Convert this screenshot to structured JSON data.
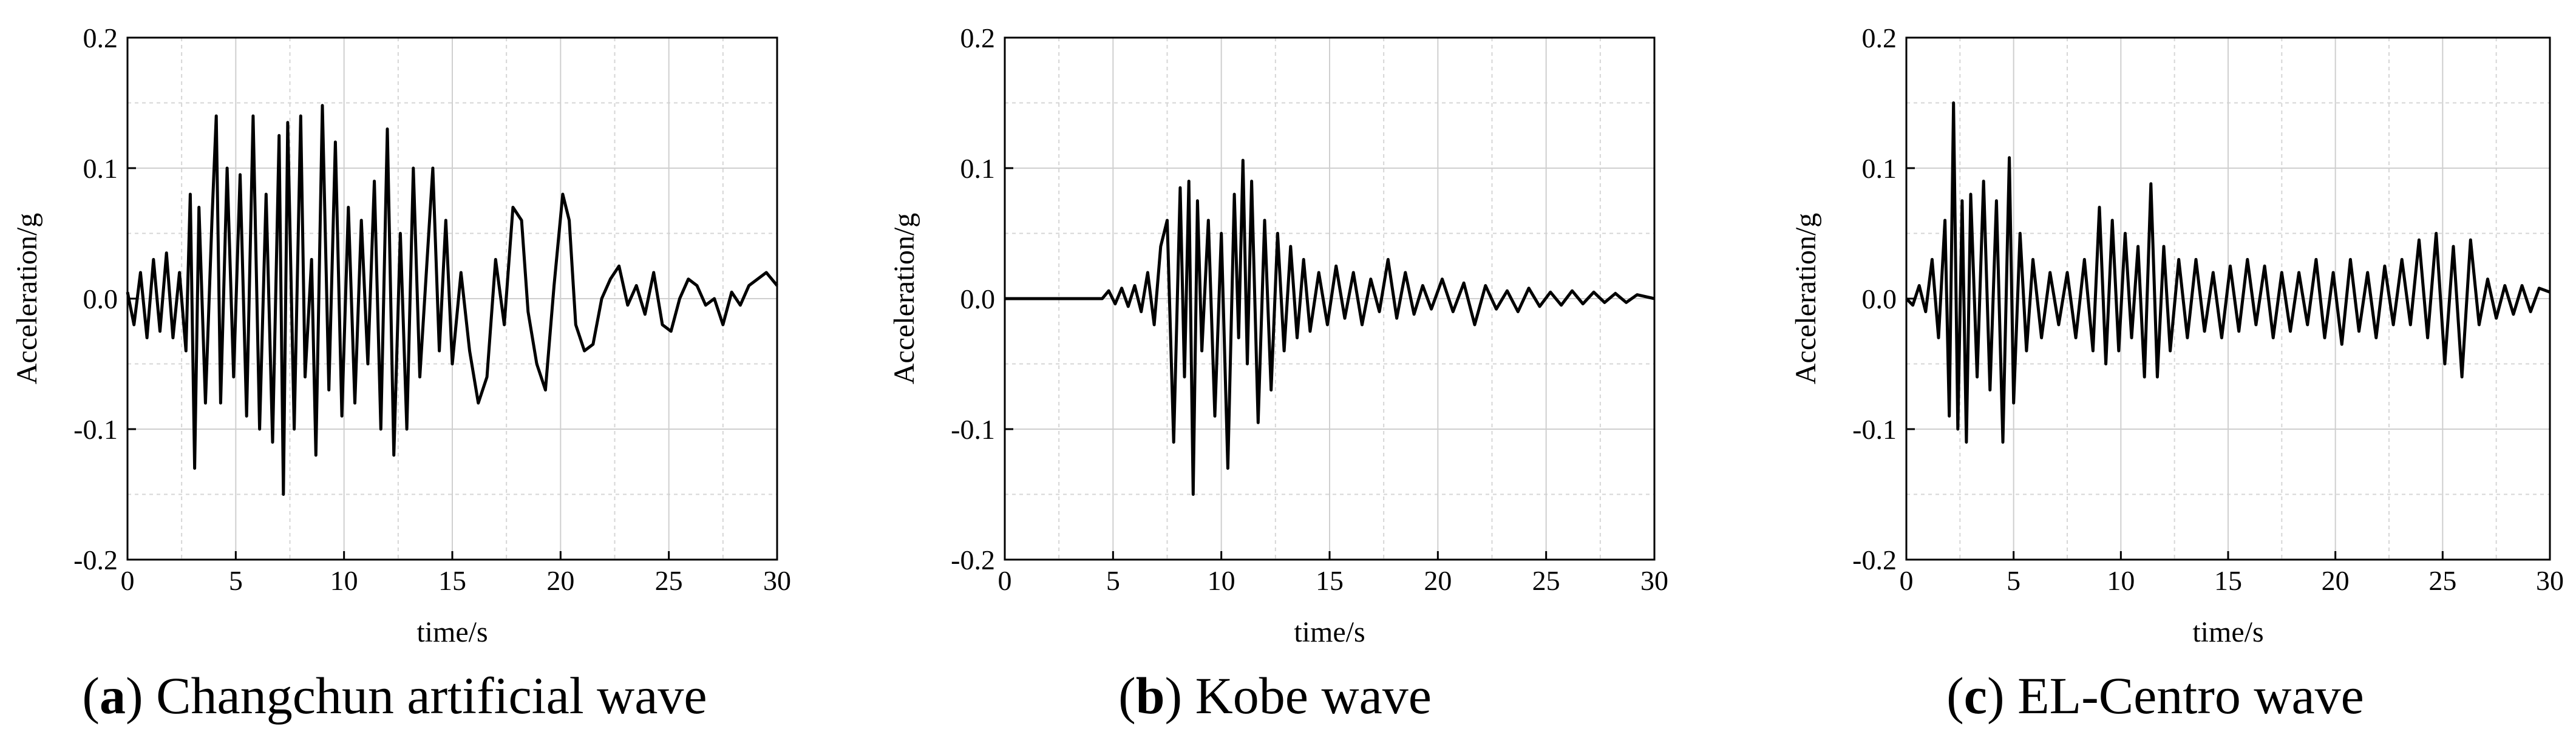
{
  "chart_data": [
    {
      "type": "line",
      "panel_letter": "a",
      "caption": "Changchun artificial wave",
      "xlabel": "time/s",
      "ylabel": "Acceleration/g",
      "xlim": [
        0,
        30
      ],
      "ylim": [
        -0.2,
        0.2
      ],
      "xticks": [
        "0",
        "5",
        "10",
        "15",
        "20",
        "25",
        "30"
      ],
      "yticks": [
        "-0.2",
        "-0.1",
        "0.0",
        "0.1",
        "0.2"
      ],
      "grid": true,
      "color": "#000000",
      "series": [
        {
          "x": [
            0,
            0.3,
            0.6,
            0.9,
            1.2,
            1.5,
            1.8,
            2.1,
            2.4,
            2.7,
            2.9,
            3.1,
            3.3,
            3.6,
            3.9,
            4.1,
            4.3,
            4.6,
            4.9,
            5.2,
            5.5,
            5.8,
            6.1,
            6.4,
            6.7,
            7.0,
            7.2,
            7.4,
            7.7,
            8.0,
            8.2,
            8.5,
            8.7,
            9.0,
            9.3,
            9.6,
            9.9,
            10.2,
            10.5,
            10.8,
            11.1,
            11.4,
            11.7,
            12.0,
            12.3,
            12.6,
            12.9,
            13.2,
            13.5,
            13.8,
            14.1,
            14.4,
            14.7,
            15.0,
            15.4,
            15.8,
            16.2,
            16.6,
            17.0,
            17.4,
            17.8,
            18.2,
            18.5,
            18.9,
            19.3,
            19.7,
            20.1,
            20.4,
            20.7,
            21.1,
            21.5,
            21.9,
            22.3,
            22.7,
            23.1,
            23.5,
            23.9,
            24.3,
            24.7,
            25.1,
            25.5,
            25.9,
            26.3,
            26.7,
            27.1,
            27.5,
            27.9,
            28.3,
            28.7,
            29.1,
            29.5,
            30.0
          ],
          "y": [
            0.005,
            -0.02,
            0.02,
            -0.03,
            0.03,
            -0.025,
            0.035,
            -0.03,
            0.02,
            -0.04,
            0.08,
            -0.13,
            0.07,
            -0.08,
            0.06,
            0.14,
            -0.08,
            0.1,
            -0.06,
            0.095,
            -0.09,
            0.14,
            -0.1,
            0.08,
            -0.11,
            0.125,
            -0.15,
            0.135,
            -0.1,
            0.14,
            -0.06,
            0.03,
            -0.12,
            0.148,
            -0.07,
            0.12,
            -0.09,
            0.07,
            -0.08,
            0.06,
            -0.05,
            0.09,
            -0.1,
            0.13,
            -0.12,
            0.05,
            -0.1,
            0.1,
            -0.06,
            0.02,
            0.1,
            -0.04,
            0.06,
            -0.05,
            0.02,
            -0.04,
            -0.08,
            -0.06,
            0.03,
            -0.02,
            0.07,
            0.06,
            -0.01,
            -0.05,
            -0.07,
            0.01,
            0.08,
            0.06,
            -0.02,
            -0.04,
            -0.035,
            0.0,
            0.015,
            0.025,
            -0.005,
            0.01,
            -0.012,
            0.02,
            -0.02,
            -0.025,
            0.0,
            0.015,
            0.01,
            -0.005,
            0.0,
            -0.02,
            0.005,
            -0.005,
            0.01,
            0.015,
            0.02,
            0.01
          ]
        }
      ]
    },
    {
      "type": "line",
      "panel_letter": "b",
      "caption": "Kobe wave",
      "xlabel": "time/s",
      "ylabel": "Acceleration/g",
      "xlim": [
        0,
        30
      ],
      "ylim": [
        -0.2,
        0.2
      ],
      "xticks": [
        "0",
        "5",
        "10",
        "15",
        "20",
        "25",
        "30"
      ],
      "yticks": [
        "-0.2",
        "-0.1",
        "0.0",
        "0.1",
        "0.2"
      ],
      "grid": true,
      "color": "#000000",
      "series": [
        {
          "x": [
            0,
            4.5,
            4.8,
            5.1,
            5.4,
            5.7,
            6.0,
            6.3,
            6.6,
            6.9,
            7.2,
            7.5,
            7.8,
            8.1,
            8.3,
            8.5,
            8.7,
            8.9,
            9.1,
            9.4,
            9.7,
            10.0,
            10.3,
            10.6,
            10.8,
            11.0,
            11.2,
            11.4,
            11.7,
            12.0,
            12.3,
            12.6,
            12.9,
            13.2,
            13.5,
            13.8,
            14.1,
            14.5,
            14.9,
            15.3,
            15.7,
            16.1,
            16.5,
            16.9,
            17.3,
            17.7,
            18.1,
            18.5,
            18.9,
            19.3,
            19.7,
            20.2,
            20.7,
            21.2,
            21.7,
            22.2,
            22.7,
            23.2,
            23.7,
            24.2,
            24.7,
            25.2,
            25.7,
            26.2,
            26.7,
            27.2,
            27.7,
            28.2,
            28.7,
            29.2,
            30.0
          ],
          "y": [
            0,
            0,
            0.006,
            -0.004,
            0.008,
            -0.006,
            0.01,
            -0.01,
            0.02,
            -0.02,
            0.04,
            0.06,
            -0.11,
            0.085,
            -0.06,
            0.09,
            -0.15,
            0.075,
            -0.04,
            0.06,
            -0.09,
            0.05,
            -0.13,
            0.08,
            -0.03,
            0.106,
            -0.05,
            0.09,
            -0.095,
            0.06,
            -0.07,
            0.05,
            -0.04,
            0.04,
            -0.03,
            0.03,
            -0.025,
            0.02,
            -0.02,
            0.025,
            -0.015,
            0.02,
            -0.02,
            0.015,
            -0.01,
            0.03,
            -0.015,
            0.02,
            -0.012,
            0.01,
            -0.008,
            0.015,
            -0.01,
            0.012,
            -0.02,
            0.01,
            -0.008,
            0.006,
            -0.01,
            0.008,
            -0.006,
            0.005,
            -0.005,
            0.006,
            -0.004,
            0.005,
            -0.003,
            0.004,
            -0.003,
            0.003,
            0.0
          ]
        }
      ]
    },
    {
      "type": "line",
      "panel_letter": "c",
      "caption": "EL-Centro wave",
      "xlabel": "time/s",
      "ylabel": "Acceleration/g",
      "xlim": [
        0,
        30
      ],
      "ylim": [
        -0.2,
        0.2
      ],
      "xticks": [
        "0",
        "5",
        "10",
        "15",
        "20",
        "25",
        "30"
      ],
      "yticks": [
        "-0.2",
        "-0.1",
        "0.0",
        "0.1",
        "0.2"
      ],
      "grid": true,
      "color": "#000000",
      "series": [
        {
          "x": [
            0,
            0.3,
            0.6,
            0.9,
            1.2,
            1.5,
            1.8,
            2.0,
            2.2,
            2.4,
            2.6,
            2.8,
            3.0,
            3.3,
            3.6,
            3.9,
            4.2,
            4.5,
            4.8,
            5.0,
            5.3,
            5.6,
            5.9,
            6.3,
            6.7,
            7.1,
            7.5,
            7.9,
            8.3,
            8.7,
            9.0,
            9.3,
            9.6,
            9.9,
            10.2,
            10.5,
            10.8,
            11.1,
            11.4,
            11.7,
            12.0,
            12.3,
            12.7,
            13.1,
            13.5,
            13.9,
            14.3,
            14.7,
            15.1,
            15.5,
            15.9,
            16.3,
            16.7,
            17.1,
            17.5,
            17.9,
            18.3,
            18.7,
            19.1,
            19.5,
            19.9,
            20.3,
            20.7,
            21.1,
            21.5,
            21.9,
            22.3,
            22.7,
            23.1,
            23.5,
            23.9,
            24.3,
            24.7,
            25.1,
            25.5,
            25.9,
            26.3,
            26.7,
            27.1,
            27.5,
            27.9,
            28.3,
            28.7,
            29.1,
            29.5,
            30.0
          ],
          "y": [
            0,
            -0.005,
            0.01,
            -0.01,
            0.03,
            -0.03,
            0.06,
            -0.09,
            0.15,
            -0.1,
            0.075,
            -0.11,
            0.08,
            -0.06,
            0.09,
            -0.07,
            0.075,
            -0.11,
            0.108,
            -0.08,
            0.05,
            -0.04,
            0.03,
            -0.03,
            0.02,
            -0.02,
            0.02,
            -0.03,
            0.03,
            -0.04,
            0.07,
            -0.05,
            0.06,
            -0.04,
            0.05,
            -0.03,
            0.04,
            -0.06,
            0.088,
            -0.06,
            0.04,
            -0.04,
            0.03,
            -0.03,
            0.03,
            -0.025,
            0.02,
            -0.03,
            0.025,
            -0.025,
            0.03,
            -0.02,
            0.025,
            -0.03,
            0.02,
            -0.025,
            0.02,
            -0.02,
            0.03,
            -0.03,
            0.02,
            -0.035,
            0.03,
            -0.025,
            0.02,
            -0.03,
            0.025,
            -0.02,
            0.03,
            -0.02,
            0.045,
            -0.03,
            0.05,
            -0.05,
            0.04,
            -0.06,
            0.045,
            -0.02,
            0.015,
            -0.015,
            0.01,
            -0.012,
            0.01,
            -0.01,
            0.008,
            0.005
          ]
        }
      ]
    }
  ]
}
